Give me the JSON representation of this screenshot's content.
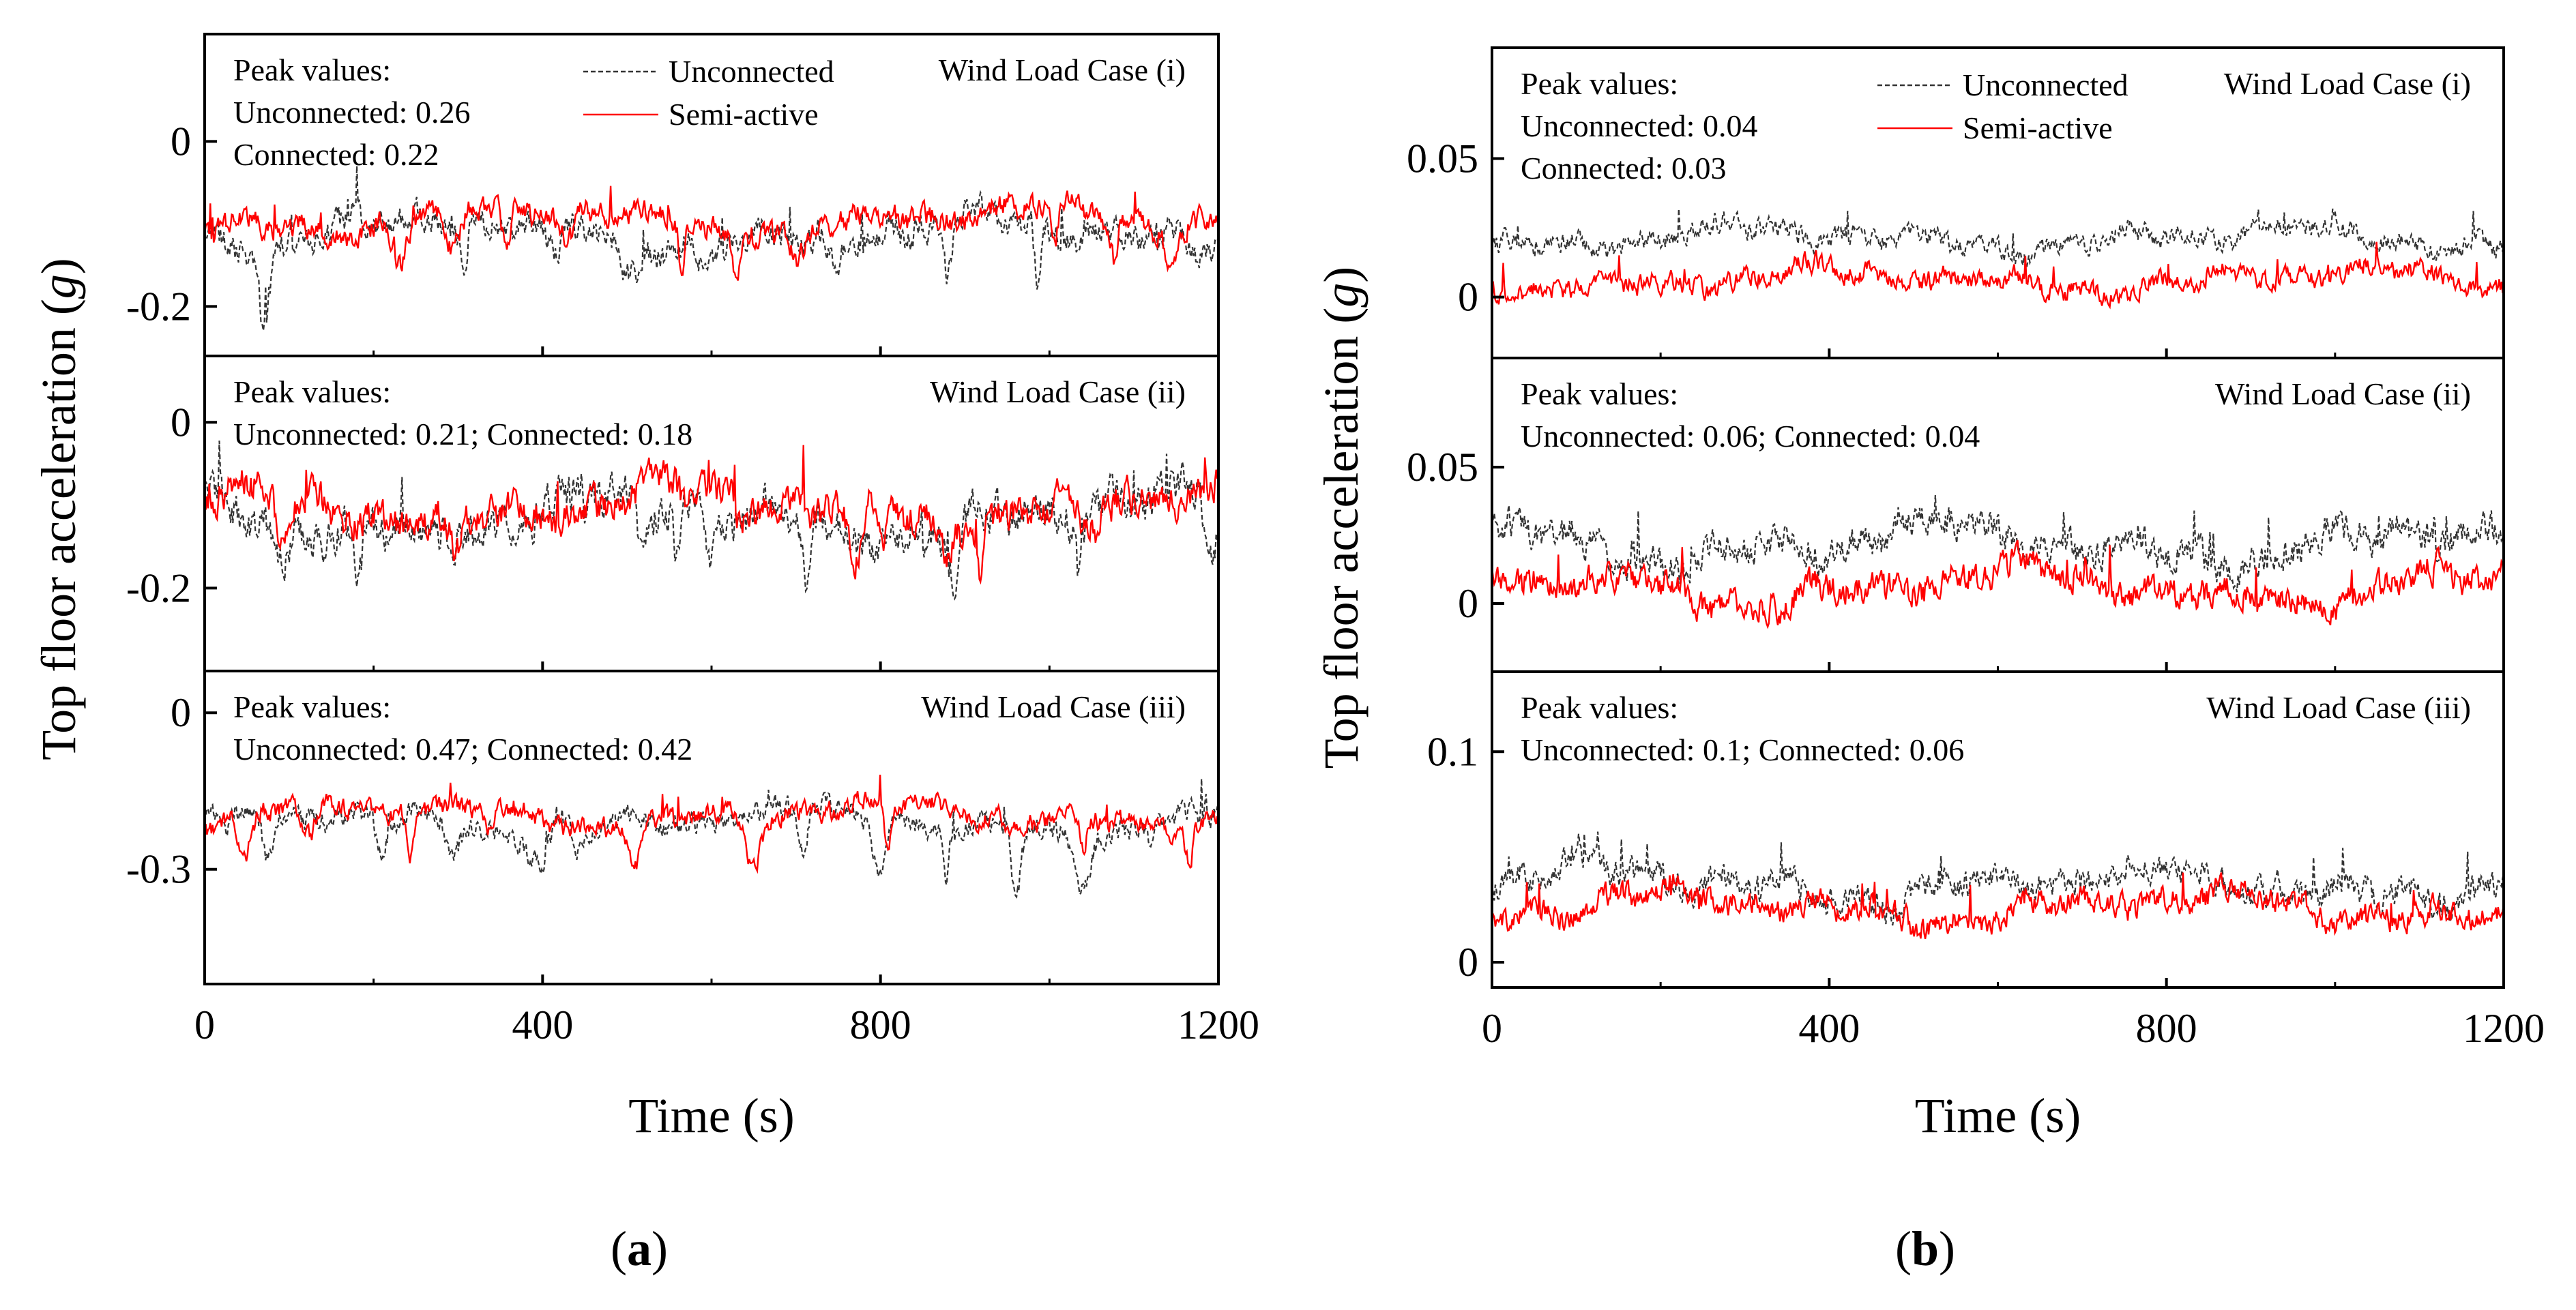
{
  "figure": {
    "subfigure_labels": [
      "(a)",
      "(b)"
    ],
    "colors": {
      "unconnected": "#333333",
      "semi_active": "#ff0000",
      "axes": "#000000"
    }
  },
  "chart_data": [
    {
      "id": "a",
      "type": "line",
      "xlabel": "Time (s)",
      "ylabel": "Top floor acceleration (g)",
      "xlim": [
        0,
        1200
      ],
      "xticks": [
        0,
        400,
        800,
        1200
      ],
      "xtick_labels": [
        "0",
        "400",
        "800",
        "1200"
      ],
      "legend": {
        "placement": "top-center",
        "entries": [
          "Unconnected",
          "Semi-active"
        ]
      },
      "panels": [
        {
          "case": "Wind Load Case (i)",
          "peak_title": "Peak values:",
          "peak_lines": [
            "Unconnected: 0.26",
            "Connected: 0.22"
          ],
          "show_legend": true,
          "ylim": [
            -0.26,
            0.13
          ],
          "yticks": [
            0,
            -0.2
          ],
          "ytick_labels": [
            "0",
            "-0.2"
          ],
          "series": [
            {
              "name": "Unconnected",
              "style": "dashed",
              "mean": -0.11,
              "amp": 0.028,
              "dip_depth": 0.07,
              "seed": 11
            },
            {
              "name": "Semi-active",
              "style": "solid",
              "mean": -0.095,
              "amp": 0.024,
              "dip_depth": 0.06,
              "seed": 12
            }
          ]
        },
        {
          "case": "Wind Load Case (ii)",
          "peak_title": "Peak values:",
          "peak_lines": [
            "Unconnected: 0.21; Connected: 0.18"
          ],
          "show_legend": false,
          "ylim": [
            -0.3,
            0.08
          ],
          "yticks": [
            0,
            -0.2
          ],
          "ytick_labels": [
            "0",
            "-0.2"
          ],
          "series": [
            {
              "name": "Unconnected",
              "style": "dashed",
              "mean": -0.115,
              "amp": 0.038,
              "dip_depth": 0.08,
              "seed": 21
            },
            {
              "name": "Semi-active",
              "style": "solid",
              "mean": -0.1,
              "amp": 0.034,
              "dip_depth": 0.07,
              "seed": 22
            }
          ]
        },
        {
          "case": "Wind Load Case (iii)",
          "peak_title": "Peak values:",
          "peak_lines": [
            "Unconnected: 0.47; Connected: 0.42"
          ],
          "show_legend": false,
          "ylim": [
            -0.52,
            0.08
          ],
          "yticks": [
            0,
            -0.3
          ],
          "ytick_labels": [
            "0",
            "-0.3"
          ],
          "series": [
            {
              "name": "Unconnected",
              "style": "dashed",
              "mean": -0.21,
              "amp": 0.035,
              "dip_depth": 0.1,
              "seed": 31
            },
            {
              "name": "Semi-active",
              "style": "solid",
              "mean": -0.195,
              "amp": 0.032,
              "dip_depth": 0.09,
              "seed": 32
            }
          ]
        }
      ]
    },
    {
      "id": "b",
      "type": "line",
      "xlabel": "Time (s)",
      "ylabel": "Top floor acceleration (g)",
      "xlim": [
        0,
        1200
      ],
      "xticks": [
        0,
        400,
        800,
        1200
      ],
      "xtick_labels": [
        "0",
        "400",
        "800",
        "1200"
      ],
      "legend": {
        "placement": "top-center",
        "entries": [
          "Unconnected",
          "Semi-active"
        ]
      },
      "panels": [
        {
          "case": "Wind Load Case (i)",
          "peak_title": "Peak values:",
          "peak_lines": [
            "Unconnected: 0.04",
            "Connected: 0.03"
          ],
          "show_legend": true,
          "ylim": [
            -0.022,
            0.09
          ],
          "yticks": [
            0.05,
            0
          ],
          "ytick_labels": [
            "0.05",
            "0"
          ],
          "series": [
            {
              "name": "Unconnected",
              "style": "dashed",
              "mean": 0.021,
              "amp": 0.006,
              "dip_depth": 0.0,
              "seed": 41
            },
            {
              "name": "Semi-active",
              "style": "solid",
              "mean": 0.006,
              "amp": 0.006,
              "dip_depth": 0.0,
              "seed": 42
            }
          ]
        },
        {
          "case": "Wind Load Case (ii)",
          "peak_title": "Peak values:",
          "peak_lines": [
            "Unconnected: 0.06; Connected: 0.04"
          ],
          "show_legend": false,
          "ylim": [
            -0.025,
            0.09
          ],
          "yticks": [
            0.05,
            0
          ],
          "ytick_labels": [
            "0.05",
            "0"
          ],
          "series": [
            {
              "name": "Unconnected",
              "style": "dashed",
              "mean": 0.022,
              "amp": 0.01,
              "dip_depth": 0.0,
              "seed": 51
            },
            {
              "name": "Semi-active",
              "style": "solid",
              "mean": 0.006,
              "amp": 0.009,
              "dip_depth": 0.0,
              "seed": 52
            }
          ]
        },
        {
          "case": "Wind Load Case (iii)",
          "peak_title": "Peak values:",
          "peak_lines": [
            "Unconnected: 0.1; Connected: 0.06"
          ],
          "show_legend": false,
          "ylim": [
            -0.012,
            0.138
          ],
          "yticks": [
            0.1,
            0
          ],
          "ytick_labels": [
            "0.1",
            "0"
          ],
          "series": [
            {
              "name": "Unconnected",
              "style": "dashed",
              "mean": 0.037,
              "amp": 0.011,
              "dip_depth": 0.0,
              "seed": 61
            },
            {
              "name": "Semi-active",
              "style": "solid",
              "mean": 0.026,
              "amp": 0.01,
              "dip_depth": 0.0,
              "seed": 62
            }
          ]
        }
      ]
    }
  ]
}
